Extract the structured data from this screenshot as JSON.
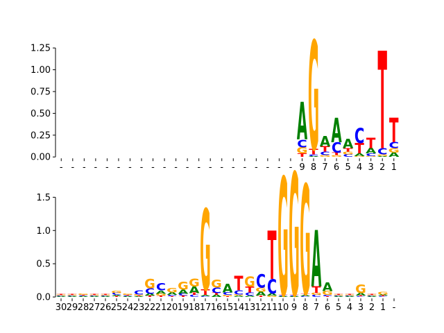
{
  "chart_data": [
    {
      "type": "sequence-logo",
      "alphabet": [
        "A",
        "C",
        "G",
        "T"
      ],
      "colors": {
        "A": "#008000",
        "C": "#0000ff",
        "G": "#ffa500",
        "T": "#ff0000"
      },
      "ylim": [
        -0.03,
        1.45
      ],
      "yticks": [
        0.0,
        0.25,
        0.5,
        0.75,
        1.0,
        1.25
      ],
      "ytick_labels": [
        "0.00",
        "0.25",
        "0.50",
        "0.75",
        "1.00",
        "1.25"
      ],
      "xtick_labels": [
        "-",
        "-",
        "-",
        "-",
        "-",
        "-",
        "-",
        "-",
        "-",
        "-",
        "-",
        "-",
        "-",
        "-",
        "-",
        "-",
        "-",
        "-",
        "-",
        "-",
        "-",
        "9",
        "8",
        "7",
        "6",
        "5",
        "4",
        "3",
        "2",
        "1"
      ],
      "positions": [
        {
          "A": 0,
          "C": 0,
          "G": 0,
          "T": 0
        },
        {
          "A": 0,
          "C": 0,
          "G": 0,
          "T": 0
        },
        {
          "A": 0,
          "C": 0,
          "G": 0,
          "T": 0
        },
        {
          "A": 0,
          "C": 0,
          "G": 0,
          "T": 0
        },
        {
          "A": 0,
          "C": 0,
          "G": 0,
          "T": 0
        },
        {
          "A": 0,
          "C": 0,
          "G": 0,
          "T": 0
        },
        {
          "A": 0,
          "C": 0,
          "G": 0,
          "T": 0
        },
        {
          "A": 0,
          "C": 0,
          "G": 0,
          "T": 0
        },
        {
          "A": 0,
          "C": 0,
          "G": 0,
          "T": 0
        },
        {
          "A": 0,
          "C": 0,
          "G": 0,
          "T": 0
        },
        {
          "A": 0,
          "C": 0,
          "G": 0,
          "T": 0
        },
        {
          "A": 0,
          "C": 0,
          "G": 0,
          "T": 0
        },
        {
          "A": 0,
          "C": 0,
          "G": 0,
          "T": 0
        },
        {
          "A": 0,
          "C": 0,
          "G": 0,
          "T": 0
        },
        {
          "A": 0,
          "C": 0,
          "G": 0,
          "T": 0
        },
        {
          "A": 0,
          "C": 0,
          "G": 0,
          "T": 0
        },
        {
          "A": 0,
          "C": 0,
          "G": 0,
          "T": 0
        },
        {
          "A": 0,
          "C": 0,
          "G": 0,
          "T": 0
        },
        {
          "A": 0,
          "C": 0,
          "G": 0,
          "T": 0
        },
        {
          "A": 0,
          "C": 0,
          "G": 0,
          "T": 0
        },
        {
          "A": 0,
          "C": 0,
          "G": 0,
          "T": 0
        },
        {
          "A": 0.43,
          "C": 0.09,
          "G": 0.07,
          "T": 0.04
        },
        {
          "A": 0.01,
          "C": 0.02,
          "G": 1.25,
          "T": 0.06
        },
        {
          "A": 0.12,
          "C": 0.04,
          "G": 0.02,
          "T": 0.06
        },
        {
          "A": 0.28,
          "C": 0.12,
          "G": 0.02,
          "T": 0.03
        },
        {
          "A": 0.11,
          "C": 0.03,
          "G": 0.03,
          "T": 0.04
        },
        {
          "A": 0.03,
          "C": 0.17,
          "G": 0.01,
          "T": 0.12
        },
        {
          "A": 0.06,
          "C": 0.03,
          "G": 0.01,
          "T": 0.12
        },
        {
          "A": 0.01,
          "C": 0.07,
          "G": 0.02,
          "T": 1.12
        },
        {
          "A": 0.05,
          "C": 0.07,
          "G": 0.05,
          "T": 0.28
        }
      ]
    },
    {
      "type": "sequence-logo",
      "alphabet": [
        "A",
        "C",
        "G",
        "T"
      ],
      "colors": {
        "A": "#008000",
        "C": "#0000ff",
        "G": "#ffa500",
        "T": "#ff0000"
      },
      "ylim": [
        -0.02,
        1.9
      ],
      "yticks": [
        0.0,
        0.5,
        1.0,
        1.5
      ],
      "ytick_labels": [
        "0.0",
        "0.5",
        "1.0",
        "1.5"
      ],
      "xtick_labels": [
        "30",
        "29",
        "28",
        "27",
        "26",
        "25",
        "24",
        "23",
        "22",
        "21",
        "20",
        "19",
        "18",
        "17",
        "16",
        "15",
        "14",
        "13",
        "12",
        "11",
        "10",
        "9",
        "8",
        "7",
        "6",
        "5",
        "4",
        "3",
        "2",
        "1",
        "-"
      ],
      "positions": [
        {
          "A": 0.01,
          "C": 0.01,
          "G": 0.01,
          "T": 0.01
        },
        {
          "A": 0.01,
          "C": 0.01,
          "G": 0.01,
          "T": 0.01
        },
        {
          "A": 0.01,
          "C": 0.01,
          "G": 0.02,
          "T": 0.01
        },
        {
          "A": 0.01,
          "C": 0.01,
          "G": 0.01,
          "T": 0.01
        },
        {
          "A": 0.01,
          "C": 0.01,
          "G": 0.01,
          "T": 0.01
        },
        {
          "A": 0.02,
          "C": 0.03,
          "G": 0.03,
          "T": 0.01
        },
        {
          "A": 0.01,
          "C": 0.01,
          "G": 0.02,
          "T": 0.01
        },
        {
          "A": 0.01,
          "C": 0.06,
          "G": 0.02,
          "T": 0.01
        },
        {
          "A": 0.03,
          "C": 0.08,
          "G": 0.14,
          "T": 0.02
        },
        {
          "A": 0.05,
          "C": 0.11,
          "G": 0.03,
          "T": 0.02
        },
        {
          "A": 0.04,
          "C": 0.02,
          "G": 0.07,
          "T": 0.01
        },
        {
          "A": 0.06,
          "C": 0.03,
          "G": 0.12,
          "T": 0.02
        },
        {
          "A": 0.1,
          "C": 0.03,
          "G": 0.12,
          "T": 0.03
        },
        {
          "A": 0.02,
          "C": 0.01,
          "G": 1.22,
          "T": 0.08
        },
        {
          "A": 0.03,
          "C": 0.08,
          "G": 0.12,
          "T": 0.03
        },
        {
          "A": 0.13,
          "C": 0.04,
          "G": 0.02,
          "T": 0.01
        },
        {
          "A": 0.02,
          "C": 0.06,
          "G": 0.02,
          "T": 0.22
        },
        {
          "A": 0.02,
          "C": 0.05,
          "G": 0.15,
          "T": 0.09
        },
        {
          "A": 0.06,
          "C": 0.2,
          "G": 0.06,
          "T": 0.02
        },
        {
          "A": 0.03,
          "C": 0.22,
          "G": 0.02,
          "T": 0.73
        },
        {
          "A": 0.01,
          "C": 0.01,
          "G": 1.78,
          "T": 0.01
        },
        {
          "A": 0.01,
          "C": 0.01,
          "G": 1.85,
          "T": 0.01
        },
        {
          "A": 0.02,
          "C": 0.01,
          "G": 1.65,
          "T": 0.02
        },
        {
          "A": 0.85,
          "C": 0.03,
          "G": 0.03,
          "T": 0.1
        },
        {
          "A": 0.13,
          "C": 0.02,
          "G": 0.06,
          "T": 0.01
        },
        {
          "A": 0.01,
          "C": 0.01,
          "G": 0.01,
          "T": 0.01
        },
        {
          "A": 0.01,
          "C": 0.01,
          "G": 0.01,
          "T": 0.01
        },
        {
          "A": 0.04,
          "C": 0.01,
          "G": 0.13,
          "T": 0.01
        },
        {
          "A": 0.01,
          "C": 0.01,
          "G": 0.01,
          "T": 0.01
        },
        {
          "A": 0.02,
          "C": 0.01,
          "G": 0.04,
          "T": 0.01
        },
        {
          "A": 0,
          "C": 0,
          "G": 0,
          "T": 0
        }
      ]
    }
  ]
}
